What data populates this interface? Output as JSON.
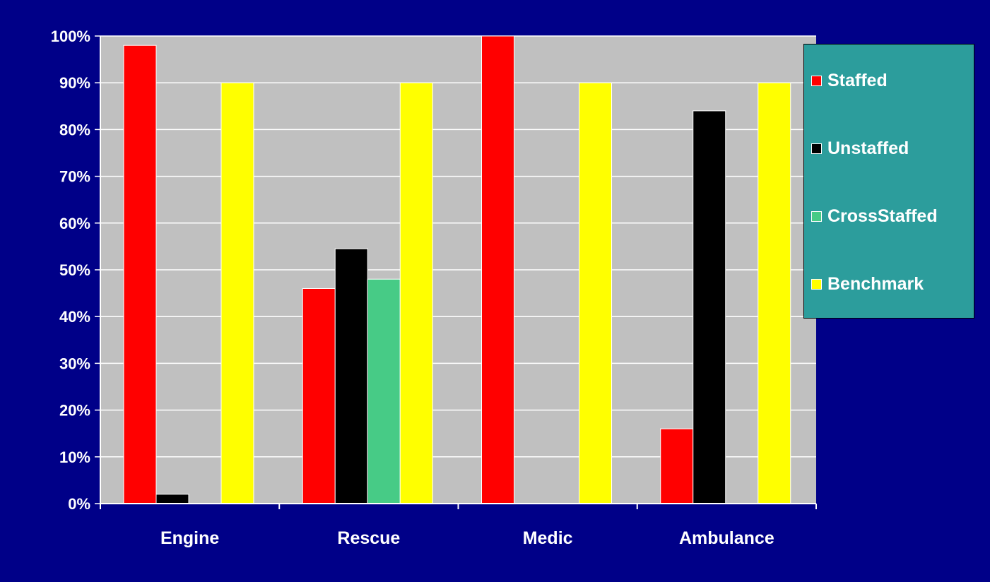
{
  "chart_data": {
    "type": "bar",
    "categories": [
      "Engine",
      "Rescue",
      "Medic",
      "Ambulance"
    ],
    "series": [
      {
        "name": "Staffed",
        "color": "#ff0000",
        "values": [
          98,
          46,
          100,
          16
        ]
      },
      {
        "name": "Unstaffed",
        "color": "#000000",
        "values": [
          2,
          54.5,
          0,
          84
        ]
      },
      {
        "name": "CrossStaffed",
        "color": "#47cb86",
        "values": [
          0,
          48,
          0,
          0
        ]
      },
      {
        "name": "Benchmark",
        "color": "#ffff00",
        "values": [
          90,
          90,
          90,
          90
        ]
      }
    ],
    "y_ticks": [
      "0%",
      "10%",
      "20%",
      "30%",
      "40%",
      "50%",
      "60%",
      "70%",
      "80%",
      "90%",
      "100%"
    ],
    "ylim": [
      0,
      100
    ],
    "grid": true,
    "legend_position": "right",
    "plot_background": "#c0c0c0"
  }
}
